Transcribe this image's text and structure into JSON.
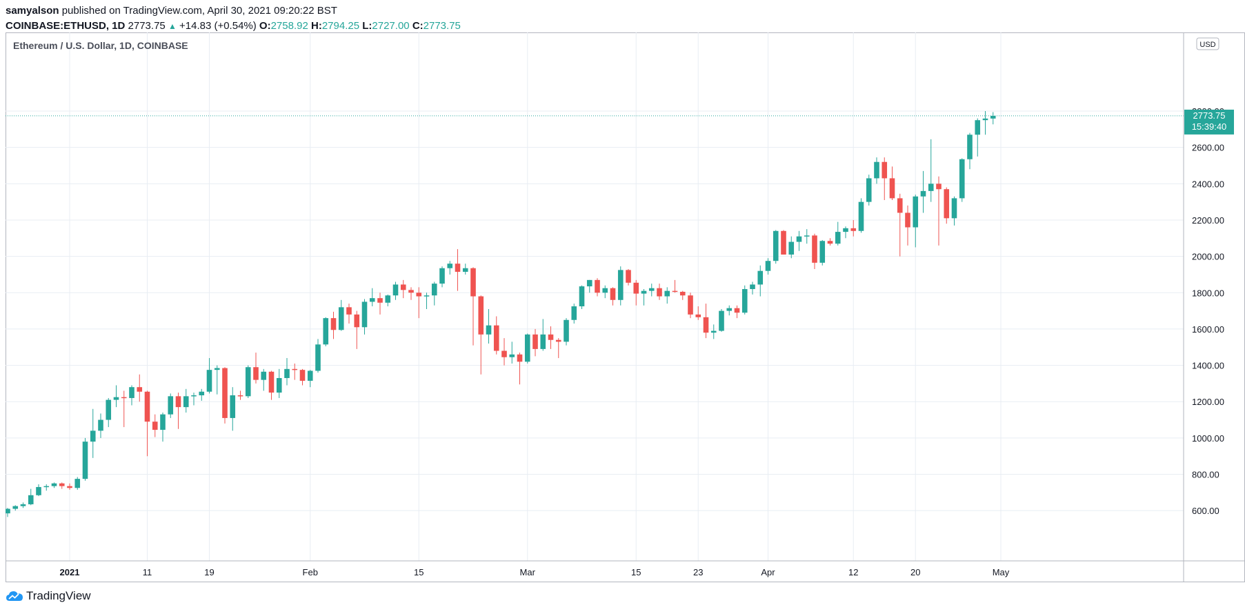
{
  "header": {
    "publisher": "samyalson",
    "published_text": "published on TradingView.com, April 30, 2021 09:20:22 BST",
    "symbol": "COINBASE:ETHUSD, 1D",
    "last": "2773.75",
    "change": "+14.83 (+0.54%)",
    "open_label": "O:",
    "open": "2758.92",
    "high_label": "H:",
    "high": "2794.25",
    "low_label": "L:",
    "low": "2727.00",
    "close_label": "C:",
    "close": "2773.75"
  },
  "chart_title": "Ethereum / U.S. Dollar, 1D, COINBASE",
  "currency_badge": "USD",
  "price_label": {
    "price": "2773.75",
    "countdown": "15:39:40"
  },
  "colors": {
    "up": "#26a69a",
    "down": "#ef5350",
    "grid": "#e8edf3",
    "axis": "#131722"
  },
  "footer": {
    "brand": "TradingView",
    "logo_icon": "tradingview-cloud-icon"
  },
  "chart_data": {
    "type": "candlestick",
    "title": "Ethereum / U.S. Dollar, 1D, COINBASE",
    "y_ticks": [
      "600.00",
      "800.00",
      "1000.00",
      "1200.00",
      "1400.00",
      "1600.00",
      "1800.00",
      "2000.00",
      "2200.00",
      "2400.00",
      "2600.00",
      "2800.00"
    ],
    "ylim": [
      450,
      2850
    ],
    "x_ticks": [
      {
        "label": "2021",
        "day": 8
      },
      {
        "label": "11",
        "day": 18
      },
      {
        "label": "19",
        "day": 26
      },
      {
        "label": "Feb",
        "day": 39
      },
      {
        "label": "15",
        "day": 53
      },
      {
        "label": "Mar",
        "day": 67
      },
      {
        "label": "15",
        "day": 81
      },
      {
        "label": "23",
        "day": 89
      },
      {
        "label": "Apr",
        "day": 98
      },
      {
        "label": "12",
        "day": 109
      },
      {
        "label": "20",
        "day": 117
      },
      {
        "label": "May",
        "day": 128
      }
    ],
    "grid": true,
    "last_price": 2773.75,
    "candles": [
      {
        "d": "2020-12-24",
        "o": 585,
        "h": 615,
        "l": 565,
        "c": 610
      },
      {
        "d": "2020-12-25",
        "o": 610,
        "h": 630,
        "l": 600,
        "c": 625
      },
      {
        "d": "2020-12-26",
        "o": 625,
        "h": 645,
        "l": 615,
        "c": 635
      },
      {
        "d": "2020-12-27",
        "o": 635,
        "h": 720,
        "l": 630,
        "c": 685
      },
      {
        "d": "2020-12-28",
        "o": 685,
        "h": 745,
        "l": 680,
        "c": 730
      },
      {
        "d": "2020-12-29",
        "o": 730,
        "h": 745,
        "l": 710,
        "c": 735
      },
      {
        "d": "2020-12-30",
        "o": 735,
        "h": 755,
        "l": 725,
        "c": 750
      },
      {
        "d": "2020-12-31",
        "o": 750,
        "h": 755,
        "l": 720,
        "c": 735
      },
      {
        "d": "2021-01-01",
        "o": 735,
        "h": 750,
        "l": 715,
        "c": 725
      },
      {
        "d": "2021-01-02",
        "o": 725,
        "h": 785,
        "l": 715,
        "c": 775
      },
      {
        "d": "2021-01-03",
        "o": 775,
        "h": 1000,
        "l": 765,
        "c": 980
      },
      {
        "d": "2021-01-04",
        "o": 980,
        "h": 1160,
        "l": 890,
        "c": 1040
      },
      {
        "d": "2021-01-05",
        "o": 1040,
        "h": 1135,
        "l": 1000,
        "c": 1100
      },
      {
        "d": "2021-01-06",
        "o": 1100,
        "h": 1220,
        "l": 1060,
        "c": 1210
      },
      {
        "d": "2021-01-07",
        "o": 1210,
        "h": 1290,
        "l": 1170,
        "c": 1225
      },
      {
        "d": "2021-01-08",
        "o": 1225,
        "h": 1260,
        "l": 1060,
        "c": 1220
      },
      {
        "d": "2021-01-09",
        "o": 1220,
        "h": 1290,
        "l": 1180,
        "c": 1280
      },
      {
        "d": "2021-01-10",
        "o": 1280,
        "h": 1350,
        "l": 1200,
        "c": 1255
      },
      {
        "d": "2021-01-11",
        "o": 1255,
        "h": 1260,
        "l": 900,
        "c": 1090
      },
      {
        "d": "2021-01-12",
        "o": 1090,
        "h": 1130,
        "l": 1005,
        "c": 1045
      },
      {
        "d": "2021-01-13",
        "o": 1045,
        "h": 1140,
        "l": 980,
        "c": 1130
      },
      {
        "d": "2021-01-14",
        "o": 1130,
        "h": 1245,
        "l": 1110,
        "c": 1230
      },
      {
        "d": "2021-01-15",
        "o": 1230,
        "h": 1250,
        "l": 1050,
        "c": 1170
      },
      {
        "d": "2021-01-16",
        "o": 1170,
        "h": 1270,
        "l": 1140,
        "c": 1230
      },
      {
        "d": "2021-01-17",
        "o": 1230,
        "h": 1250,
        "l": 1180,
        "c": 1235
      },
      {
        "d": "2021-01-18",
        "o": 1235,
        "h": 1270,
        "l": 1205,
        "c": 1255
      },
      {
        "d": "2021-01-19",
        "o": 1255,
        "h": 1440,
        "l": 1245,
        "c": 1375
      },
      {
        "d": "2021-01-20",
        "o": 1375,
        "h": 1400,
        "l": 1240,
        "c": 1385
      },
      {
        "d": "2021-01-21",
        "o": 1385,
        "h": 1390,
        "l": 1080,
        "c": 1110
      },
      {
        "d": "2021-01-22",
        "o": 1110,
        "h": 1280,
        "l": 1040,
        "c": 1235
      },
      {
        "d": "2021-01-23",
        "o": 1235,
        "h": 1260,
        "l": 1210,
        "c": 1230
      },
      {
        "d": "2021-01-24",
        "o": 1230,
        "h": 1400,
        "l": 1220,
        "c": 1390
      },
      {
        "d": "2021-01-25",
        "o": 1390,
        "h": 1470,
        "l": 1300,
        "c": 1320
      },
      {
        "d": "2021-01-26",
        "o": 1320,
        "h": 1380,
        "l": 1260,
        "c": 1365
      },
      {
        "d": "2021-01-27",
        "o": 1365,
        "h": 1370,
        "l": 1210,
        "c": 1250
      },
      {
        "d": "2021-01-28",
        "o": 1250,
        "h": 1380,
        "l": 1220,
        "c": 1330
      },
      {
        "d": "2021-01-29",
        "o": 1330,
        "h": 1440,
        "l": 1290,
        "c": 1380
      },
      {
        "d": "2021-01-30",
        "o": 1380,
        "h": 1410,
        "l": 1320,
        "c": 1375
      },
      {
        "d": "2021-01-31",
        "o": 1375,
        "h": 1380,
        "l": 1290,
        "c": 1315
      },
      {
        "d": "2021-02-01",
        "o": 1315,
        "h": 1375,
        "l": 1280,
        "c": 1370
      },
      {
        "d": "2021-02-02",
        "o": 1370,
        "h": 1545,
        "l": 1360,
        "c": 1515
      },
      {
        "d": "2021-02-03",
        "o": 1515,
        "h": 1665,
        "l": 1505,
        "c": 1660
      },
      {
        "d": "2021-02-04",
        "o": 1660,
        "h": 1695,
        "l": 1545,
        "c": 1595
      },
      {
        "d": "2021-02-05",
        "o": 1595,
        "h": 1760,
        "l": 1590,
        "c": 1720
      },
      {
        "d": "2021-02-06",
        "o": 1720,
        "h": 1740,
        "l": 1630,
        "c": 1680
      },
      {
        "d": "2021-02-07",
        "o": 1680,
        "h": 1700,
        "l": 1490,
        "c": 1610
      },
      {
        "d": "2021-02-08",
        "o": 1610,
        "h": 1765,
        "l": 1570,
        "c": 1750
      },
      {
        "d": "2021-02-09",
        "o": 1750,
        "h": 1825,
        "l": 1725,
        "c": 1770
      },
      {
        "d": "2021-02-10",
        "o": 1770,
        "h": 1800,
        "l": 1680,
        "c": 1745
      },
      {
        "d": "2021-02-11",
        "o": 1745,
        "h": 1790,
        "l": 1725,
        "c": 1785
      },
      {
        "d": "2021-02-12",
        "o": 1785,
        "h": 1860,
        "l": 1760,
        "c": 1845
      },
      {
        "d": "2021-02-13",
        "o": 1845,
        "h": 1870,
        "l": 1770,
        "c": 1815
      },
      {
        "d": "2021-02-14",
        "o": 1815,
        "h": 1830,
        "l": 1760,
        "c": 1800
      },
      {
        "d": "2021-02-15",
        "o": 1800,
        "h": 1830,
        "l": 1660,
        "c": 1780
      },
      {
        "d": "2021-02-16",
        "o": 1780,
        "h": 1800,
        "l": 1710,
        "c": 1785
      },
      {
        "d": "2021-02-17",
        "o": 1785,
        "h": 1860,
        "l": 1730,
        "c": 1850
      },
      {
        "d": "2021-02-18",
        "o": 1850,
        "h": 1945,
        "l": 1830,
        "c": 1935
      },
      {
        "d": "2021-02-19",
        "o": 1935,
        "h": 1975,
        "l": 1900,
        "c": 1960
      },
      {
        "d": "2021-02-20",
        "o": 1960,
        "h": 2040,
        "l": 1810,
        "c": 1915
      },
      {
        "d": "2021-02-21",
        "o": 1915,
        "h": 1960,
        "l": 1900,
        "c": 1935
      },
      {
        "d": "2021-02-22",
        "o": 1935,
        "h": 1940,
        "l": 1510,
        "c": 1780
      },
      {
        "d": "2021-02-23",
        "o": 1780,
        "h": 1785,
        "l": 1350,
        "c": 1570
      },
      {
        "d": "2021-02-24",
        "o": 1570,
        "h": 1710,
        "l": 1520,
        "c": 1620
      },
      {
        "d": "2021-02-25",
        "o": 1620,
        "h": 1670,
        "l": 1460,
        "c": 1480
      },
      {
        "d": "2021-02-26",
        "o": 1480,
        "h": 1550,
        "l": 1400,
        "c": 1445
      },
      {
        "d": "2021-02-27",
        "o": 1445,
        "h": 1530,
        "l": 1410,
        "c": 1460
      },
      {
        "d": "2021-02-28",
        "o": 1460,
        "h": 1470,
        "l": 1295,
        "c": 1420
      },
      {
        "d": "2021-03-01",
        "o": 1420,
        "h": 1575,
        "l": 1410,
        "c": 1570
      },
      {
        "d": "2021-03-02",
        "o": 1570,
        "h": 1600,
        "l": 1450,
        "c": 1490
      },
      {
        "d": "2021-03-03",
        "o": 1490,
        "h": 1655,
        "l": 1480,
        "c": 1570
      },
      {
        "d": "2021-03-04",
        "o": 1570,
        "h": 1615,
        "l": 1490,
        "c": 1540
      },
      {
        "d": "2021-03-05",
        "o": 1540,
        "h": 1550,
        "l": 1440,
        "c": 1530
      },
      {
        "d": "2021-03-06",
        "o": 1530,
        "h": 1660,
        "l": 1510,
        "c": 1650
      },
      {
        "d": "2021-03-07",
        "o": 1650,
        "h": 1740,
        "l": 1630,
        "c": 1725
      },
      {
        "d": "2021-03-08",
        "o": 1725,
        "h": 1840,
        "l": 1710,
        "c": 1835
      },
      {
        "d": "2021-03-09",
        "o": 1835,
        "h": 1870,
        "l": 1800,
        "c": 1870
      },
      {
        "d": "2021-03-10",
        "o": 1870,
        "h": 1880,
        "l": 1780,
        "c": 1800
      },
      {
        "d": "2021-03-11",
        "o": 1800,
        "h": 1840,
        "l": 1770,
        "c": 1825
      },
      {
        "d": "2021-03-12",
        "o": 1825,
        "h": 1830,
        "l": 1730,
        "c": 1760
      },
      {
        "d": "2021-03-13",
        "o": 1760,
        "h": 1945,
        "l": 1730,
        "c": 1925
      },
      {
        "d": "2021-03-14",
        "o": 1925,
        "h": 1930,
        "l": 1840,
        "c": 1855
      },
      {
        "d": "2021-03-15",
        "o": 1855,
        "h": 1870,
        "l": 1730,
        "c": 1795
      },
      {
        "d": "2021-03-16",
        "o": 1795,
        "h": 1820,
        "l": 1730,
        "c": 1810
      },
      {
        "d": "2021-03-17",
        "o": 1810,
        "h": 1850,
        "l": 1780,
        "c": 1825
      },
      {
        "d": "2021-03-18",
        "o": 1825,
        "h": 1850,
        "l": 1760,
        "c": 1780
      },
      {
        "d": "2021-03-19",
        "o": 1780,
        "h": 1830,
        "l": 1740,
        "c": 1810
      },
      {
        "d": "2021-03-20",
        "o": 1810,
        "h": 1870,
        "l": 1800,
        "c": 1805
      },
      {
        "d": "2021-03-21",
        "o": 1805,
        "h": 1810,
        "l": 1760,
        "c": 1785
      },
      {
        "d": "2021-03-22",
        "o": 1785,
        "h": 1800,
        "l": 1660,
        "c": 1680
      },
      {
        "d": "2021-03-23",
        "o": 1680,
        "h": 1725,
        "l": 1650,
        "c": 1665
      },
      {
        "d": "2021-03-24",
        "o": 1665,
        "h": 1740,
        "l": 1550,
        "c": 1580
      },
      {
        "d": "2021-03-25",
        "o": 1580,
        "h": 1625,
        "l": 1545,
        "c": 1590
      },
      {
        "d": "2021-03-26",
        "o": 1590,
        "h": 1710,
        "l": 1585,
        "c": 1700
      },
      {
        "d": "2021-03-27",
        "o": 1700,
        "h": 1730,
        "l": 1675,
        "c": 1715
      },
      {
        "d": "2021-03-28",
        "o": 1715,
        "h": 1730,
        "l": 1660,
        "c": 1690
      },
      {
        "d": "2021-03-29",
        "o": 1690,
        "h": 1840,
        "l": 1680,
        "c": 1820
      },
      {
        "d": "2021-03-30",
        "o": 1820,
        "h": 1860,
        "l": 1790,
        "c": 1845
      },
      {
        "d": "2021-03-31",
        "o": 1845,
        "h": 1950,
        "l": 1780,
        "c": 1920
      },
      {
        "d": "2021-04-01",
        "o": 1920,
        "h": 1990,
        "l": 1900,
        "c": 1975
      },
      {
        "d": "2021-04-02",
        "o": 1975,
        "h": 2145,
        "l": 1960,
        "c": 2140
      },
      {
        "d": "2021-04-03",
        "o": 2140,
        "h": 2145,
        "l": 2010,
        "c": 2010
      },
      {
        "d": "2021-04-04",
        "o": 2010,
        "h": 2110,
        "l": 1990,
        "c": 2080
      },
      {
        "d": "2021-04-05",
        "o": 2080,
        "h": 2140,
        "l": 2030,
        "c": 2110
      },
      {
        "d": "2021-04-06",
        "o": 2110,
        "h": 2150,
        "l": 2070,
        "c": 2115
      },
      {
        "d": "2021-04-07",
        "o": 2115,
        "h": 2125,
        "l": 1930,
        "c": 1965
      },
      {
        "d": "2021-04-08",
        "o": 1965,
        "h": 2090,
        "l": 1950,
        "c": 2085
      },
      {
        "d": "2021-04-09",
        "o": 2085,
        "h": 2100,
        "l": 2060,
        "c": 2070
      },
      {
        "d": "2021-04-10",
        "o": 2070,
        "h": 2190,
        "l": 2060,
        "c": 2135
      },
      {
        "d": "2021-04-11",
        "o": 2135,
        "h": 2165,
        "l": 2100,
        "c": 2155
      },
      {
        "d": "2021-04-12",
        "o": 2155,
        "h": 2200,
        "l": 2110,
        "c": 2140
      },
      {
        "d": "2021-04-13",
        "o": 2140,
        "h": 2320,
        "l": 2130,
        "c": 2300
      },
      {
        "d": "2021-04-14",
        "o": 2300,
        "h": 2450,
        "l": 2280,
        "c": 2430
      },
      {
        "d": "2021-04-15",
        "o": 2430,
        "h": 2545,
        "l": 2400,
        "c": 2520
      },
      {
        "d": "2021-04-16",
        "o": 2520,
        "h": 2545,
        "l": 2310,
        "c": 2430
      },
      {
        "d": "2021-04-17",
        "o": 2430,
        "h": 2495,
        "l": 2310,
        "c": 2320
      },
      {
        "d": "2021-04-18",
        "o": 2320,
        "h": 2345,
        "l": 2000,
        "c": 2240
      },
      {
        "d": "2021-04-19",
        "o": 2240,
        "h": 2280,
        "l": 2060,
        "c": 2160
      },
      {
        "d": "2021-04-20",
        "o": 2160,
        "h": 2340,
        "l": 2050,
        "c": 2330
      },
      {
        "d": "2021-04-21",
        "o": 2330,
        "h": 2470,
        "l": 2240,
        "c": 2360
      },
      {
        "d": "2021-04-22",
        "o": 2360,
        "h": 2645,
        "l": 2300,
        "c": 2400
      },
      {
        "d": "2021-04-23",
        "o": 2400,
        "h": 2440,
        "l": 2060,
        "c": 2370
      },
      {
        "d": "2021-04-24",
        "o": 2370,
        "h": 2380,
        "l": 2180,
        "c": 2210
      },
      {
        "d": "2021-04-25",
        "o": 2210,
        "h": 2330,
        "l": 2170,
        "c": 2320
      },
      {
        "d": "2021-04-26",
        "o": 2320,
        "h": 2540,
        "l": 2300,
        "c": 2535
      },
      {
        "d": "2021-04-27",
        "o": 2535,
        "h": 2680,
        "l": 2480,
        "c": 2670
      },
      {
        "d": "2021-04-28",
        "o": 2670,
        "h": 2760,
        "l": 2550,
        "c": 2750
      },
      {
        "d": "2021-04-29",
        "o": 2750,
        "h": 2800,
        "l": 2670,
        "c": 2759
      },
      {
        "d": "2021-04-30",
        "o": 2758.92,
        "h": 2794.25,
        "l": 2727.0,
        "c": 2773.75
      }
    ]
  }
}
